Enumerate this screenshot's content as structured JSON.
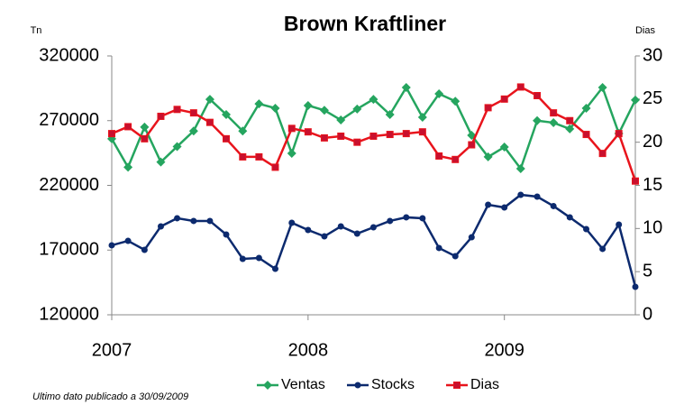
{
  "chart_data": {
    "type": "line",
    "title": "Brown Kraftliner",
    "y_label": "Tn",
    "y2_label": "Dias",
    "note": "Ultimo dato publicado a 30/09/2009",
    "x": [
      2007,
      2007.083,
      2007.167,
      2007.25,
      2007.333,
      2007.417,
      2007.5,
      2007.583,
      2007.667,
      2007.75,
      2007.833,
      2007.917,
      2008,
      2008.083,
      2008.167,
      2008.25,
      2008.333,
      2008.417,
      2008.5,
      2008.583,
      2008.667,
      2008.75,
      2008.833,
      2008.917,
      2009,
      2009.083,
      2009.167,
      2009.25,
      2009.333,
      2009.417,
      2009.5,
      2009.583,
      2009.667
    ],
    "xlim": [
      2007,
      2009.667
    ],
    "xticks": [
      2007,
      2008,
      2009
    ],
    "ylim": [
      120000,
      320000
    ],
    "yticks": [
      120000,
      170000,
      220000,
      270000,
      320000
    ],
    "y2lim": [
      0,
      30
    ],
    "y2ticks": [
      0,
      5,
      10,
      15,
      20,
      25,
      30
    ],
    "legend": "bottom",
    "series": [
      {
        "name": "Ventas",
        "color": "#25a55f",
        "marker": "diamond",
        "values": [
          256000,
          234000,
          265000,
          238000,
          250000,
          262000,
          286500,
          274700,
          262000,
          283000,
          279600,
          244700,
          281700,
          278000,
          270500,
          279000,
          286500,
          274700,
          295600,
          272600,
          290700,
          285000,
          258700,
          242000,
          249600,
          232900,
          270000,
          268400,
          263600,
          279600,
          295600,
          260100,
          285900
        ]
      },
      {
        "name": "Stocks",
        "color": "#0c2a6e",
        "marker": "circle",
        "values": [
          173700,
          177100,
          170200,
          188300,
          194600,
          192500,
          192500,
          182000,
          163200,
          163900,
          155500,
          191100,
          185500,
          180600,
          188300,
          182700,
          187600,
          192500,
          195300,
          194600,
          171600,
          165300,
          179900,
          205000,
          202900,
          212700,
          211300,
          204000,
          195300,
          186200,
          170900,
          189700,
          141600
        ]
      },
      {
        "name": "Dias",
        "color": "#e8141c",
        "marker": "square",
        "axis": "y2",
        "values": [
          21.0,
          21.8,
          20.4,
          23.0,
          23.8,
          23.4,
          22.3,
          20.4,
          18.3,
          18.3,
          17.1,
          21.6,
          21.2,
          20.5,
          20.7,
          20.0,
          20.7,
          20.9,
          21.0,
          21.2,
          18.4,
          18.0,
          19.7,
          24.0,
          25.0,
          26.4,
          25.4,
          23.4,
          22.5,
          20.9,
          18.7,
          21.0,
          15.5
        ]
      }
    ]
  }
}
